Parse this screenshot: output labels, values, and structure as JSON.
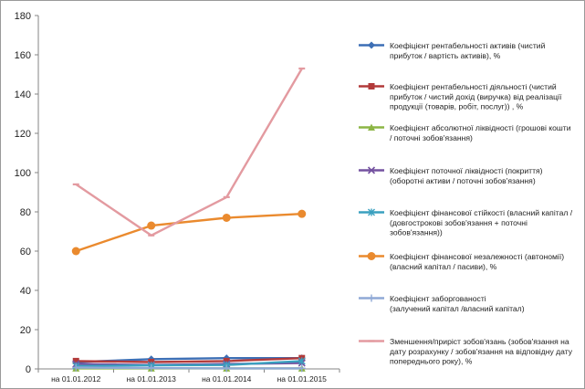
{
  "chart_data": {
    "type": "line",
    "categories": [
      "на 01.01.2012",
      "на 01.01.2013",
      "на 01.01.2014",
      "на 01.01.2015"
    ],
    "ylim": [
      0,
      180
    ],
    "yticks": [
      0,
      20,
      40,
      60,
      80,
      100,
      120,
      140,
      160,
      180
    ],
    "grid": false,
    "legend_position": "right",
    "title": "",
    "xlabel": "",
    "ylabel": "",
    "series": [
      {
        "name": "Коефіцієнт рентабельності активів (чистий прибуток / вартість активів), %",
        "legend_lines": [
          "Коефіцієнт рентабельності активів (чистий",
          "прибуток / вартість активів), %"
        ],
        "color": "#3d6fb5",
        "marker": "diamond",
        "values": [
          3.5,
          5,
          5.5,
          5.5
        ]
      },
      {
        "name": "Коефіцієнт рентабельності діяльності (чистий прибуток / чистий дохід (виручка) від реалізації продукції (товарів, робіт, послуг)) , %",
        "legend_lines": [
          "Коефіцієнт рентабельності діяльності (чистий",
          "прибуток / чистий дохід (виручка) від реалізації",
          "продукції (товарів, робіт, послуг)) , %"
        ],
        "color": "#b23a3a",
        "marker": "square",
        "values": [
          4,
          3.5,
          4,
          5.5
        ]
      },
      {
        "name": "Коефіцієнт абсолютної ліквідності (грошові кошти / поточні зобов'язання)",
        "legend_lines": [
          "Коефіцієнт абсолютної ліквідності (грошові кошти",
          "/ поточні зобов'язання)"
        ],
        "color": "#8cb545",
        "marker": "triangle",
        "values": [
          0.3,
          0.3,
          0.3,
          0.3
        ]
      },
      {
        "name": "Коефіцієнт поточної ліквідності (покриття) (оборотні активи / поточні зобов'язання)",
        "legend_lines": [
          "Коефіцієнт поточної ліквідності (покриття)",
          "(оборотні активи /        поточні зобов'язання)"
        ],
        "color": "#7452a0",
        "marker": "x",
        "values": [
          2.5,
          2,
          2.5,
          3
        ]
      },
      {
        "name": "Коефіцієнт фінансової стійкості (власний капітал / (довгострокові зобов'язання + поточні зобов'язання))",
        "legend_lines": [
          "Коефіцієнт фінансової стійкості (власний капітал /",
          "(довгострокові зобов'язання + поточні",
          "зобов'язання))"
        ],
        "color": "#3aa0bf",
        "marker": "star",
        "values": [
          1.5,
          1.8,
          2,
          4
        ]
      },
      {
        "name": "Коефіцієнт фінансової незалежності (автономії) (власний капітал / пасиви), %",
        "legend_lines": [
          "Коефіцієнт фінансової незалежності (автономії)",
          "(власний капітал / пасиви), %"
        ],
        "color": "#ea8a2e",
        "marker": "circle",
        "values": [
          60,
          73,
          77,
          79
        ]
      },
      {
        "name": "Коефіцієнт заборгованості (залучений капітал /власний капітал)",
        "legend_lines": [
          "Коефіцієнт заборгованості",
          "(залучений капітал /власний капітал)"
        ],
        "color": "#8fa9d6",
        "marker": "plus",
        "values": [
          0.7,
          0.4,
          0.3,
          0.3
        ]
      },
      {
        "name": "Зменшення/приріст зобов'язань (зобов'язання на дату розрахунку / зобов'язання на відповідну дату попереднього року), %",
        "legend_lines": [
          "Зменшення/приріст зобов'язань (зобов'язання на",
          "дату розрахунку / зобов'язання на відповідну дату",
          "попереднього року), %"
        ],
        "color": "#e39aa0",
        "marker": "dash",
        "values": [
          94,
          68,
          87.5,
          153
        ]
      }
    ]
  }
}
